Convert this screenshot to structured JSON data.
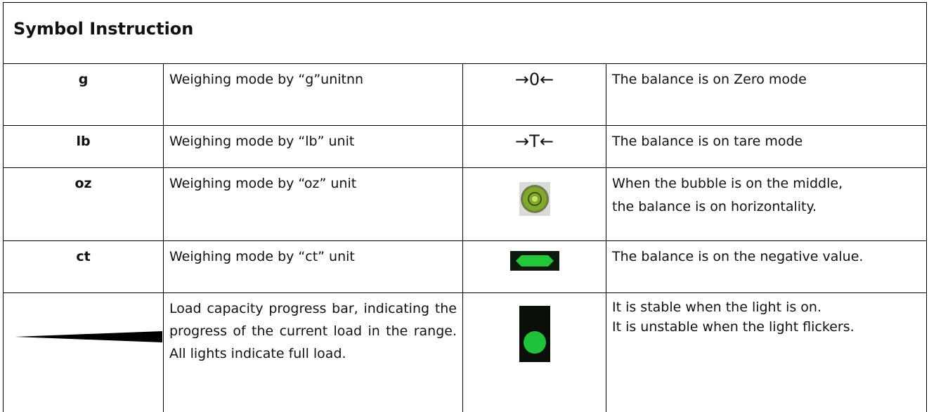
{
  "header": {
    "title": "Symbol Instruction"
  },
  "table": {
    "rows": [
      {
        "unit": "g",
        "unit_desc": "Weighing mode by “g”unitnn",
        "symbol": "→0←",
        "symbol_desc": [
          "The balance is on Zero mode"
        ]
      },
      {
        "unit": "lb",
        "unit_desc": "Weighing mode by “lb” unit",
        "symbol": "→T←",
        "symbol_desc": [
          "The balance is on tare mode"
        ]
      },
      {
        "unit": "oz",
        "unit_desc": "Weighing mode by “oz” unit",
        "symbol_desc": [
          "When the bubble is on the middle,",
          "the balance is on horizontality."
        ]
      },
      {
        "unit": "ct",
        "unit_desc": "Weighing mode by “ct” unit",
        "symbol_desc": [
          "The balance is on the negative value."
        ]
      },
      {
        "unit_desc": "Load capacity progress bar, indicating the progress of the current load in the range. All lights indicate full load.",
        "symbol_desc": [
          "It is stable when the light is on.",
          "It is unstable when the light flickers."
        ]
      }
    ]
  }
}
